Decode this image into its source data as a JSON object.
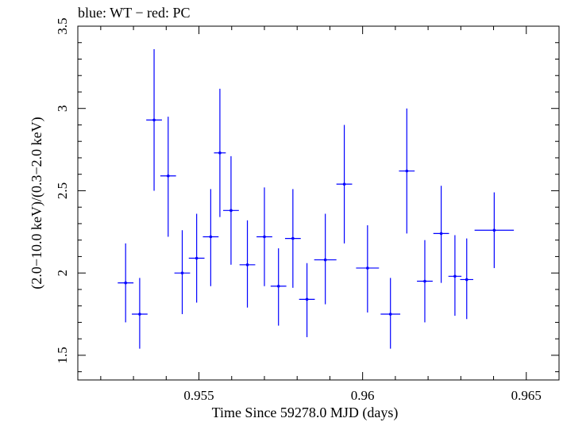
{
  "chart_data": {
    "type": "scatter",
    "title": "blue: WT − red: PC",
    "xlabel": "Time Since 59278.0 MJD (days)",
    "ylabel": "(2.0−10.0 keV)/(0.3−2.0 keV)",
    "xlim": [
      0.9513,
      0.966
    ],
    "ylim": [
      1.35,
      3.5
    ],
    "xticks": [
      0.955,
      0.96,
      0.965
    ],
    "xtick_labels": [
      "0.955",
      "0.96",
      "0.965"
    ],
    "yticks": [
      1.5,
      2,
      2.5,
      3,
      3.5
    ],
    "ytick_labels": [
      "1.5",
      "2",
      "2.5",
      "3",
      "3.5"
    ],
    "grid": false,
    "series": [
      {
        "color": "#0000ff",
        "points": [
          {
            "x": 0.95276,
            "xerr": 0.00024,
            "y": 1.94,
            "ylo": 1.7,
            "yhi": 2.18
          },
          {
            "x": 0.95319,
            "xerr": 0.00024,
            "y": 1.75,
            "ylo": 1.54,
            "yhi": 1.97
          },
          {
            "x": 0.95363,
            "xerr": 0.00024,
            "y": 2.93,
            "ylo": 2.5,
            "yhi": 3.36
          },
          {
            "x": 0.95406,
            "xerr": 0.00024,
            "y": 2.59,
            "ylo": 2.22,
            "yhi": 2.95
          },
          {
            "x": 0.95449,
            "xerr": 0.00024,
            "y": 2.0,
            "ylo": 1.75,
            "yhi": 2.26
          },
          {
            "x": 0.95493,
            "xerr": 0.00024,
            "y": 2.09,
            "ylo": 1.82,
            "yhi": 2.36
          },
          {
            "x": 0.95536,
            "xerr": 0.00024,
            "y": 2.22,
            "ylo": 1.92,
            "yhi": 2.51
          },
          {
            "x": 0.95564,
            "xerr": 0.00018,
            "y": 2.73,
            "ylo": 2.34,
            "yhi": 3.12
          },
          {
            "x": 0.95598,
            "xerr": 0.00024,
            "y": 2.38,
            "ylo": 2.05,
            "yhi": 2.71
          },
          {
            "x": 0.95648,
            "xerr": 0.00024,
            "y": 2.05,
            "ylo": 1.79,
            "yhi": 2.32
          },
          {
            "x": 0.957,
            "xerr": 0.00024,
            "y": 2.22,
            "ylo": 1.92,
            "yhi": 2.52
          },
          {
            "x": 0.95743,
            "xerr": 0.00024,
            "y": 1.92,
            "ylo": 1.68,
            "yhi": 2.15
          },
          {
            "x": 0.95787,
            "xerr": 0.00024,
            "y": 2.21,
            "ylo": 1.91,
            "yhi": 2.51
          },
          {
            "x": 0.9583,
            "xerr": 0.00024,
            "y": 1.84,
            "ylo": 1.61,
            "yhi": 2.06
          },
          {
            "x": 0.95886,
            "xerr": 0.00034,
            "y": 2.08,
            "ylo": 1.81,
            "yhi": 2.36
          },
          {
            "x": 0.95944,
            "xerr": 0.00024,
            "y": 2.54,
            "ylo": 2.18,
            "yhi": 2.9
          },
          {
            "x": 0.96015,
            "xerr": 0.00035,
            "y": 2.03,
            "ylo": 1.76,
            "yhi": 2.29
          },
          {
            "x": 0.96085,
            "xerr": 0.0003,
            "y": 1.75,
            "ylo": 1.54,
            "yhi": 1.97
          },
          {
            "x": 0.96135,
            "xerr": 0.00024,
            "y": 2.62,
            "ylo": 2.24,
            "yhi": 3.0
          },
          {
            "x": 0.9619,
            "xerr": 0.00024,
            "y": 1.95,
            "ylo": 1.7,
            "yhi": 2.2
          },
          {
            "x": 0.9624,
            "xerr": 0.00024,
            "y": 2.24,
            "ylo": 1.94,
            "yhi": 2.53
          },
          {
            "x": 0.96282,
            "xerr": 0.0002,
            "y": 1.98,
            "ylo": 1.74,
            "yhi": 2.23
          },
          {
            "x": 0.96318,
            "xerr": 0.0002,
            "y": 1.96,
            "ylo": 1.72,
            "yhi": 2.21
          },
          {
            "x": 0.96402,
            "xerr": 0.0006,
            "y": 2.26,
            "ylo": 2.03,
            "yhi": 2.49
          }
        ]
      }
    ]
  }
}
